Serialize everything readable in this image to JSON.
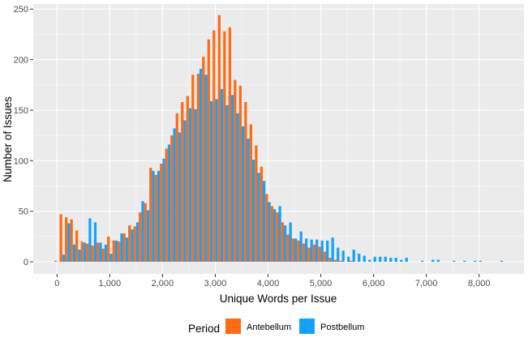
{
  "chart_data": {
    "type": "bar",
    "title": "",
    "xlabel": "Unique Words per Issue",
    "ylabel": "Number of Issues",
    "xlim": [
      -450,
      8850
    ],
    "ylim": [
      -12,
      255
    ],
    "bin_width": 100,
    "x_ticks": [
      0,
      1000,
      2000,
      3000,
      4000,
      5000,
      6000,
      7000,
      8000
    ],
    "x_tick_labels": [
      "0",
      "1,000",
      "2,000",
      "3,000",
      "4,000",
      "5,000",
      "6,000",
      "7,000",
      "8,000"
    ],
    "y_ticks": [
      0,
      50,
      100,
      150,
      200,
      250
    ],
    "y_tick_labels": [
      "0",
      "50",
      "100",
      "150",
      "200",
      "250"
    ],
    "grid": true,
    "legend_position": "bottom",
    "legend_title": "Period",
    "colors": {
      "panel": "#EBEBEB",
      "grid": "#FFFFFF"
    },
    "x": [
      0,
      100,
      200,
      300,
      400,
      500,
      600,
      700,
      800,
      900,
      1000,
      1100,
      1200,
      1300,
      1400,
      1500,
      1600,
      1700,
      1800,
      1900,
      2000,
      2100,
      2200,
      2300,
      2400,
      2500,
      2600,
      2700,
      2800,
      2900,
      3000,
      3100,
      3200,
      3300,
      3400,
      3500,
      3600,
      3700,
      3800,
      3900,
      4000,
      4100,
      4200,
      4300,
      4400,
      4500,
      4600,
      4700,
      4800,
      4900,
      5000,
      5100,
      5200,
      5300,
      5400,
      5500,
      5600,
      5700,
      5800,
      5900,
      6000,
      6100,
      6200,
      6300,
      6400,
      6500,
      6600,
      6700,
      6800,
      6900,
      7000,
      7100,
      7200,
      7300,
      7400,
      7500,
      7600,
      7700,
      7800,
      7900,
      8000,
      8100,
      8200,
      8300,
      8400
    ],
    "series": [
      {
        "name": "Antebellum",
        "color": "#FF6A13",
        "values": [
          1,
          47,
          44,
          42,
          31,
          20,
          18,
          16,
          19,
          13,
          25,
          21,
          20,
          28,
          36,
          35,
          49,
          58,
          93,
          86,
          97,
          112,
          125,
          147,
          158,
          164,
          185,
          186,
          203,
          220,
          229,
          244,
          228,
          232,
          180,
          174,
          158,
          136,
          115,
          94,
          67,
          55,
          49,
          39,
          27,
          23,
          21,
          18,
          14,
          17,
          15,
          10,
          4,
          2,
          1,
          0,
          1,
          0,
          0,
          0,
          0,
          0,
          0,
          0,
          0,
          0,
          0,
          0,
          0,
          0,
          0,
          0,
          0,
          0,
          0,
          0,
          0,
          0,
          0,
          0,
          0,
          0,
          0,
          0,
          0
        ]
      },
      {
        "name": "Postbellum",
        "color": "#13A3FF",
        "values": [
          0,
          7,
          38,
          17,
          12,
          19,
          43,
          39,
          19,
          17,
          8,
          21,
          28,
          24,
          32,
          39,
          60,
          51,
          90,
          90,
          102,
          116,
          132,
          128,
          140,
          152,
          151,
          191,
          185,
          159,
          161,
          171,
          155,
          165,
          147,
          134,
          122,
          101,
          88,
          80,
          59,
          52,
          55,
          36,
          39,
          23,
          30,
          23,
          22,
          22,
          21,
          21,
          24,
          14,
          11,
          5,
          12,
          8,
          6,
          2,
          5,
          5,
          5,
          4,
          4,
          2,
          4,
          0,
          0,
          1,
          0,
          2,
          2,
          0,
          0,
          1,
          0,
          1,
          0,
          1,
          1,
          0,
          0,
          0,
          1
        ]
      }
    ]
  }
}
